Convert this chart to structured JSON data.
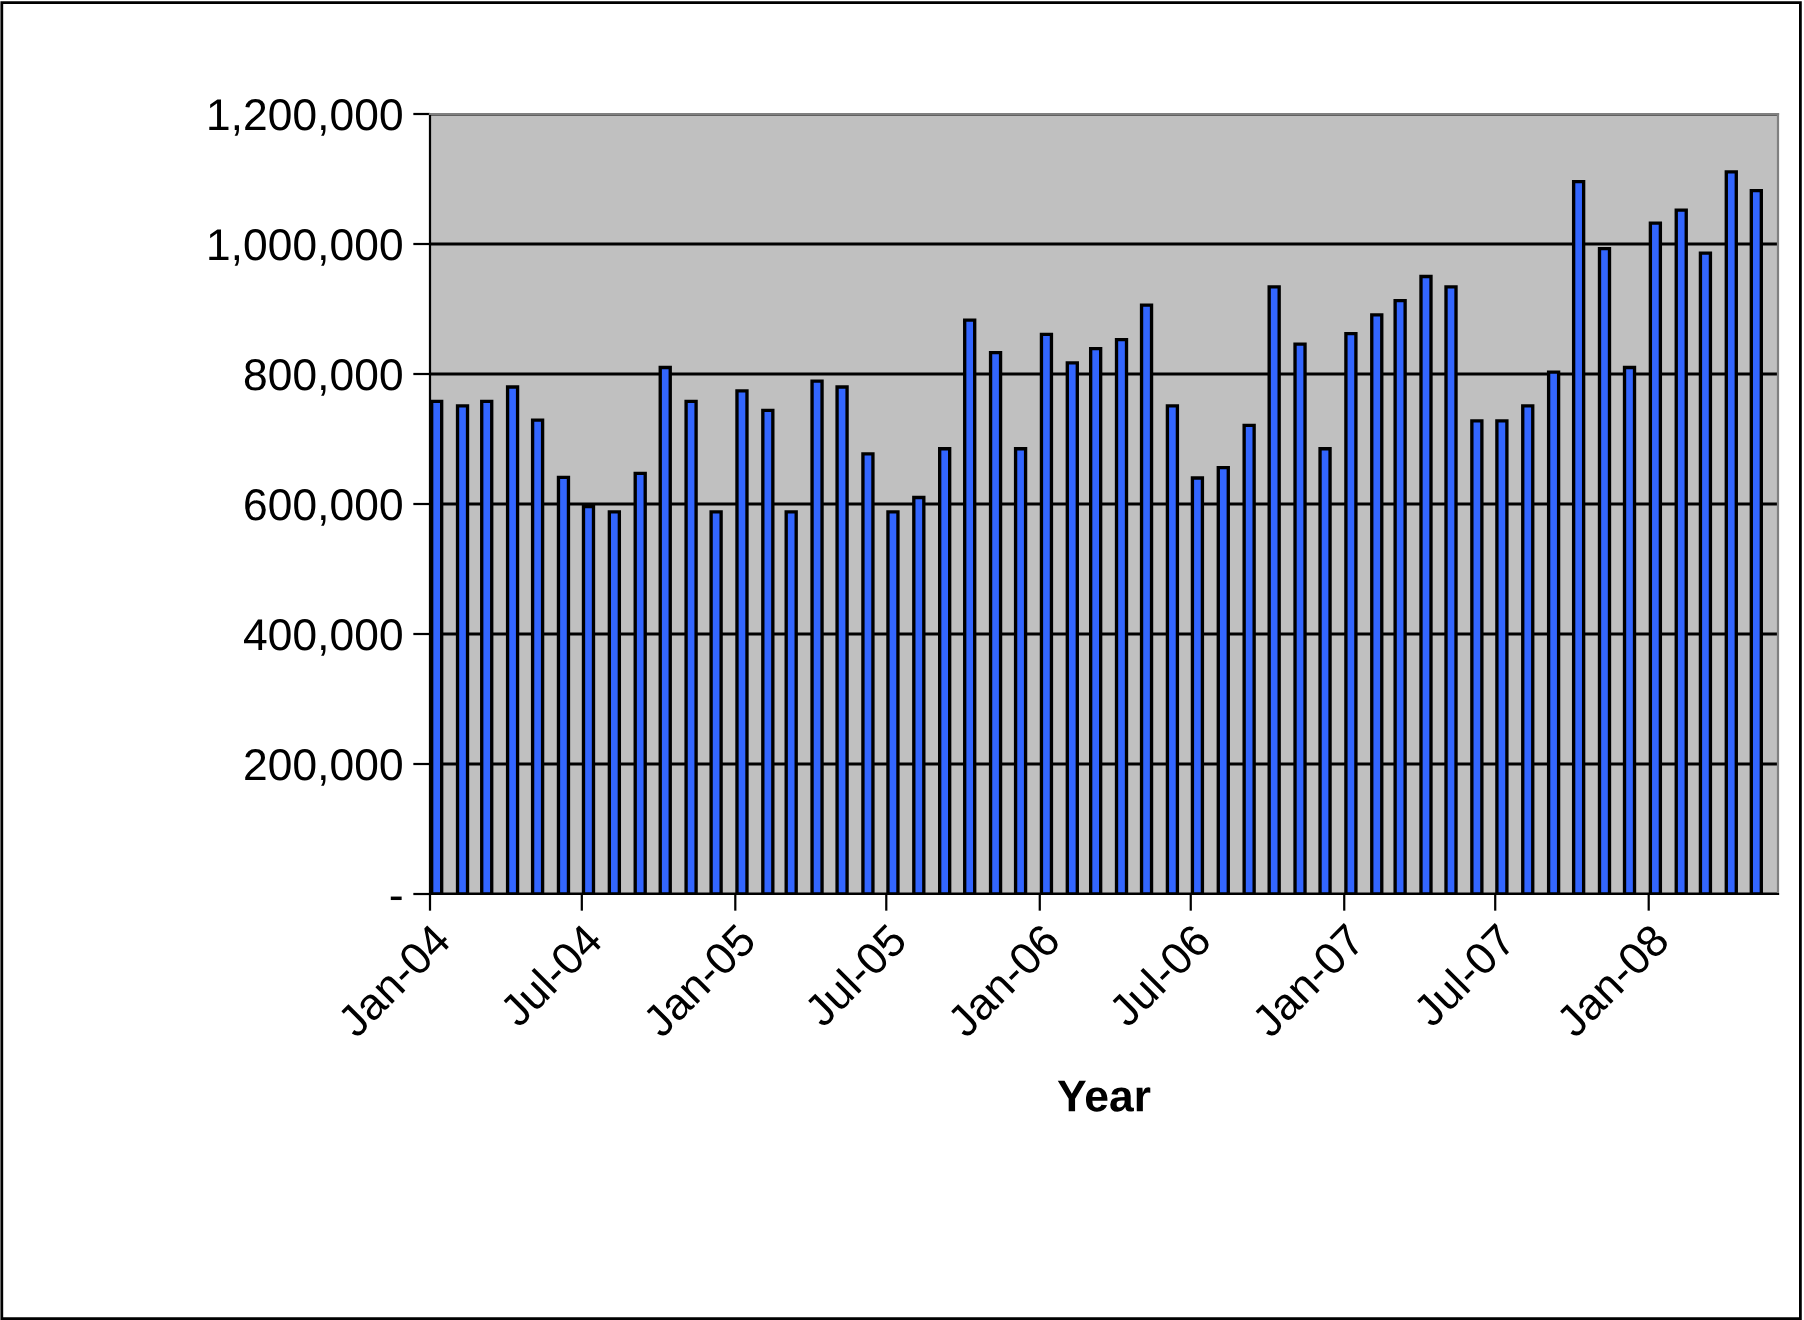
{
  "chart_data": {
    "type": "bar",
    "xlabel": "Year",
    "color": "#3366ff",
    "x": [
      "2004-01",
      "2004-02",
      "2004-03",
      "2004-04",
      "2004-05",
      "2004-06",
      "2004-07",
      "2004-08",
      "2004-09",
      "2004-10",
      "2004-11",
      "2004-12",
      "2005-01",
      "2005-02",
      "2005-03",
      "2005-04",
      "2005-05",
      "2005-06",
      "2005-07",
      "2005-08",
      "2005-09",
      "2005-10",
      "2005-11",
      "2005-12",
      "2006-01",
      "2006-02",
      "2006-03",
      "2006-04",
      "2006-05",
      "2006-06",
      "2006-07",
      "2006-08",
      "2006-09",
      "2006-10",
      "2006-11",
      "2006-12",
      "2007-01",
      "2007-02",
      "2007-03",
      "2007-04",
      "2007-05",
      "2007-06",
      "2007-07",
      "2007-08",
      "2007-09",
      "2007-10",
      "2007-11",
      "2007-12",
      "2008-01",
      "2008-02",
      "2008-03",
      "2008-04",
      "2008-05"
    ],
    "values": [
      758000,
      751000,
      758000,
      780000,
      729000,
      641000,
      596000,
      588000,
      647000,
      810000,
      758000,
      588000,
      774000,
      744000,
      588000,
      789000,
      780000,
      677000,
      588000,
      610000,
      685000,
      883000,
      833000,
      685000,
      861000,
      817000,
      839000,
      853000,
      906000,
      751000,
      640000,
      656000,
      721000,
      934000,
      846000,
      685000,
      862000,
      891000,
      913000,
      950000,
      934000,
      728000,
      728000,
      751000,
      803000,
      1096000,
      993000,
      810000,
      1032000,
      1052000,
      986000,
      1111000,
      1082000
    ],
    "xlim": [
      "2004-01-01",
      "2008-06-04"
    ],
    "xticks": [
      {
        "value": "2004-01",
        "label": "Jan-04"
      },
      {
        "value": "2004-07",
        "label": "Jul-04"
      },
      {
        "value": "2005-01",
        "label": "Jan-05"
      },
      {
        "value": "2005-07",
        "label": "Jul-05"
      },
      {
        "value": "2006-01",
        "label": "Jan-06"
      },
      {
        "value": "2006-07",
        "label": "Jul-06"
      },
      {
        "value": "2007-01",
        "label": "Jan-07"
      },
      {
        "value": "2007-07",
        "label": "Jul-07"
      },
      {
        "value": "2008-01",
        "label": "Jan-08"
      }
    ],
    "ylim": [
      0,
      1200000
    ],
    "yticks": [
      {
        "value": 0,
        "label": "-"
      },
      {
        "value": 200000,
        "label": "200,000"
      },
      {
        "value": 400000,
        "label": "400,000"
      },
      {
        "value": 600000,
        "label": "600,000"
      },
      {
        "value": 800000,
        "label": "800,000"
      },
      {
        "value": 1000000,
        "label": "1,000,000"
      },
      {
        "value": 1200000,
        "label": "1,200,000"
      }
    ],
    "grid": "y",
    "legend": false
  }
}
